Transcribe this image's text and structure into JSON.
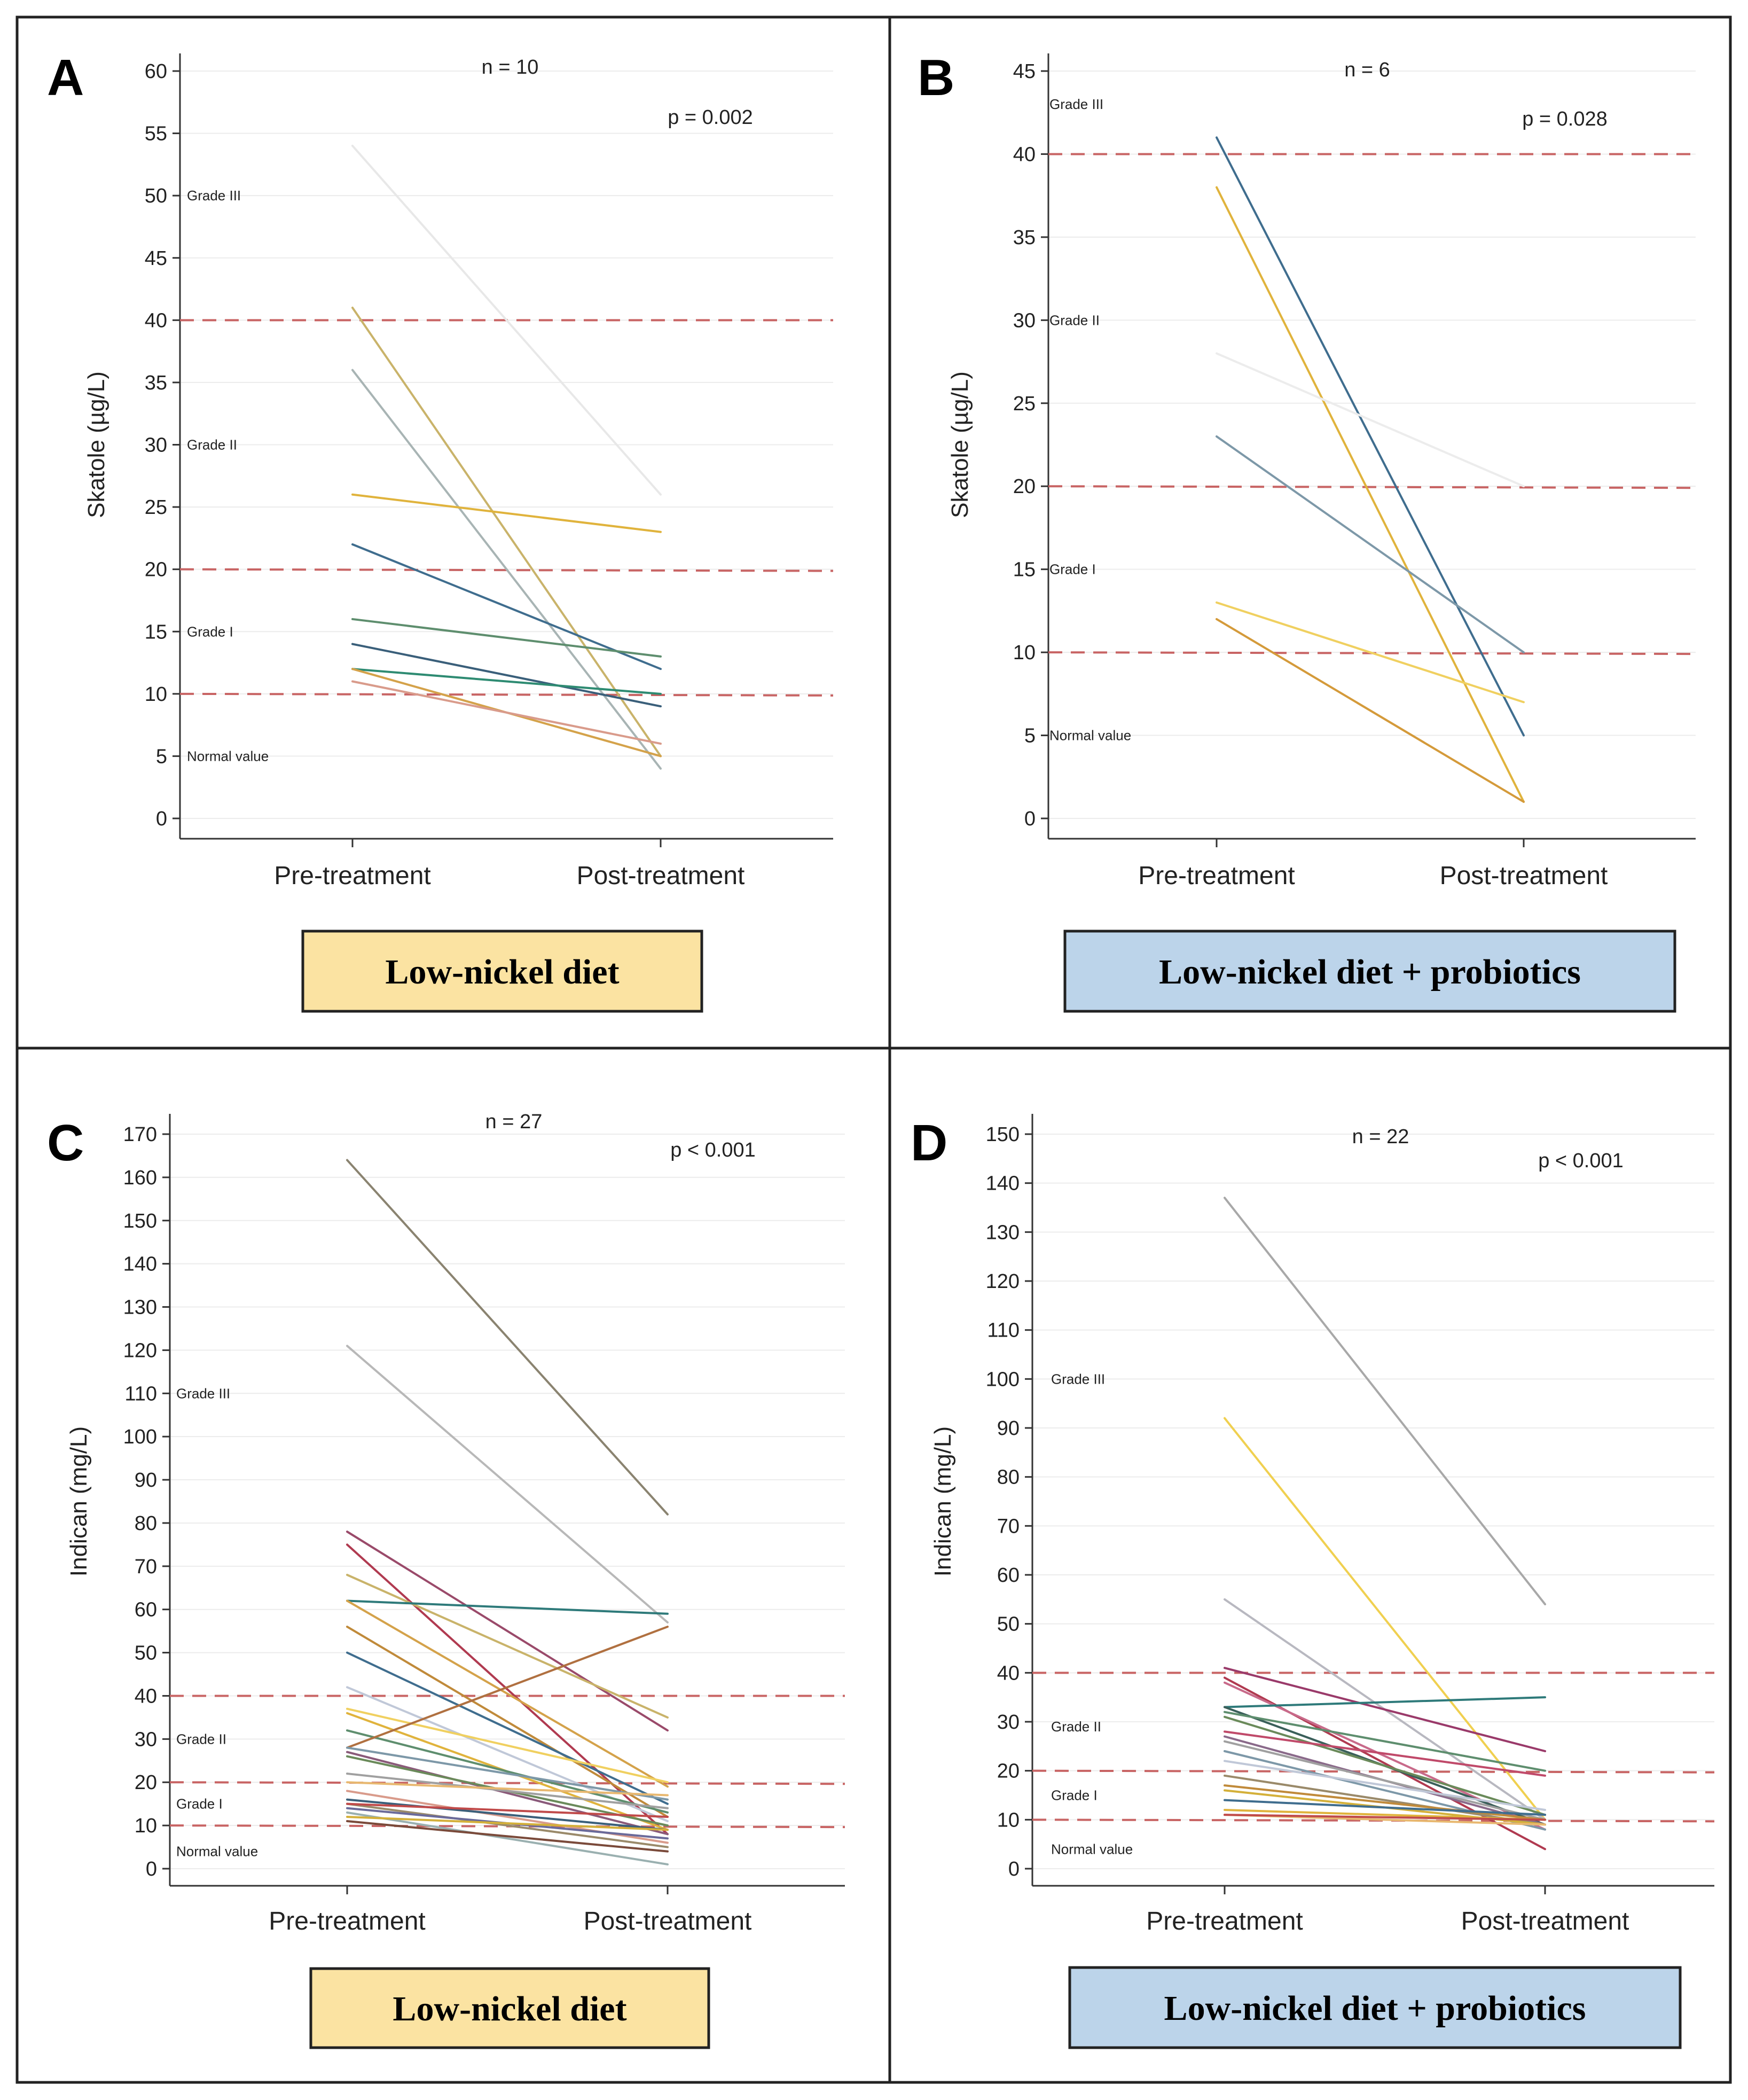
{
  "chart_data": [
    {
      "type": "line",
      "panel": "A",
      "categories": [
        "Pre-treatment",
        "Post-treatment"
      ],
      "ylabel": "Skatole (µg/L)",
      "ylim": [
        0,
        60
      ],
      "yticks": [
        0,
        5,
        10,
        15,
        20,
        25,
        30,
        35,
        40,
        45,
        50,
        55,
        60
      ],
      "n_label": "n = 10",
      "p_label": "p = 0.002",
      "thresholds": [
        10,
        20,
        40
      ],
      "grades": [
        {
          "label": "Grade III",
          "value": 50
        },
        {
          "label": "Grade II",
          "value": 30
        },
        {
          "label": "Grade I",
          "value": 15
        },
        {
          "label": "Normal value",
          "value": 5
        }
      ],
      "caption": "Low-nickel diet",
      "caption_color": "#fbe3a2",
      "series": [
        {
          "name": "s1",
          "values": [
            54,
            26
          ],
          "color": "#e8e8e8"
        },
        {
          "name": "s2",
          "values": [
            41,
            5
          ],
          "color": "#c9b36a"
        },
        {
          "name": "s3",
          "values": [
            36,
            4
          ],
          "color": "#a8b4b4"
        },
        {
          "name": "s4",
          "values": [
            26,
            23
          ],
          "color": "#e0b33c"
        },
        {
          "name": "s5",
          "values": [
            22,
            12
          ],
          "color": "#3f6d8e"
        },
        {
          "name": "s6",
          "values": [
            16,
            13
          ],
          "color": "#5e8e6e"
        },
        {
          "name": "s7",
          "values": [
            14,
            9
          ],
          "color": "#3a5f7a"
        },
        {
          "name": "s8",
          "values": [
            12,
            10
          ],
          "color": "#2e8b72"
        },
        {
          "name": "s9",
          "values": [
            12,
            5
          ],
          "color": "#d4a24a"
        },
        {
          "name": "s10",
          "values": [
            11,
            6
          ],
          "color": "#d99b8b"
        }
      ]
    },
    {
      "type": "line",
      "panel": "B",
      "categories": [
        "Pre-treatment",
        "Post-treatment"
      ],
      "ylabel": "Skatole (µg/L)",
      "ylim": [
        0,
        45
      ],
      "yticks": [
        0,
        5,
        10,
        15,
        20,
        25,
        30,
        35,
        40,
        45
      ],
      "n_label": "n = 6",
      "p_label": "p = 0.028",
      "thresholds": [
        10,
        20,
        40
      ],
      "grades": [
        {
          "label": "Grade III",
          "value": 43
        },
        {
          "label": "Grade II",
          "value": 30
        },
        {
          "label": "Grade I",
          "value": 15
        },
        {
          "label": "Normal value",
          "value": 5
        }
      ],
      "caption": "Low-nickel diet + probiotics",
      "caption_color": "#bcd4ea",
      "series": [
        {
          "name": "s1",
          "values": [
            41,
            5
          ],
          "color": "#3f6d8e"
        },
        {
          "name": "s2",
          "values": [
            38,
            1
          ],
          "color": "#e0b33c"
        },
        {
          "name": "s3",
          "values": [
            28,
            20
          ],
          "color": "#ececec"
        },
        {
          "name": "s4",
          "values": [
            23,
            10
          ],
          "color": "#7d98a8"
        },
        {
          "name": "s5",
          "values": [
            13,
            7
          ],
          "color": "#f0d060"
        },
        {
          "name": "s6",
          "values": [
            12,
            1
          ],
          "color": "#d49a3a"
        }
      ]
    },
    {
      "type": "line",
      "panel": "C",
      "categories": [
        "Pre-treatment",
        "Post-treatment"
      ],
      "ylabel": "Indican (mg/L)",
      "ylim": [
        0,
        170
      ],
      "yticks": [
        0,
        10,
        20,
        30,
        40,
        50,
        60,
        70,
        80,
        90,
        100,
        110,
        120,
        130,
        140,
        150,
        160,
        170
      ],
      "n_label": "n = 27",
      "p_label": "p < 0.001",
      "thresholds": [
        10,
        20,
        40
      ],
      "grades": [
        {
          "label": "Grade III",
          "value": 110
        },
        {
          "label": "Grade II",
          "value": 30
        },
        {
          "label": "Grade I",
          "value": 15
        },
        {
          "label": "Normal value",
          "value": 4
        }
      ],
      "caption": "Low-nickel diet",
      "caption_color": "#fbe3a2",
      "series": [
        {
          "name": "s1",
          "values": [
            164,
            82
          ],
          "color": "#8a8370"
        },
        {
          "name": "s2",
          "values": [
            121,
            57
          ],
          "color": "#b8b8b8"
        },
        {
          "name": "s3",
          "values": [
            78,
            32
          ],
          "color": "#9a4a6a"
        },
        {
          "name": "s4",
          "values": [
            75,
            8
          ],
          "color": "#b03a50"
        },
        {
          "name": "s5",
          "values": [
            68,
            35
          ],
          "color": "#c9b36a"
        },
        {
          "name": "s6",
          "values": [
            62,
            59
          ],
          "color": "#2e7a7a"
        },
        {
          "name": "s7",
          "values": [
            62,
            19
          ],
          "color": "#d4a24a"
        },
        {
          "name": "s8",
          "values": [
            56,
            12
          ],
          "color": "#c08a3a"
        },
        {
          "name": "s9",
          "values": [
            50,
            15
          ],
          "color": "#3f6d8e"
        },
        {
          "name": "s10",
          "values": [
            42,
            11
          ],
          "color": "#c0c8d8"
        },
        {
          "name": "s11",
          "values": [
            37,
            20
          ],
          "color": "#f0d060"
        },
        {
          "name": "s12",
          "values": [
            36,
            9
          ],
          "color": "#e0b33c"
        },
        {
          "name": "s13",
          "values": [
            32,
            13
          ],
          "color": "#5e8e6e"
        },
        {
          "name": "s14",
          "values": [
            28,
            56
          ],
          "color": "#b07040"
        },
        {
          "name": "s15",
          "values": [
            28,
            16
          ],
          "color": "#7d98a8"
        },
        {
          "name": "s16",
          "values": [
            27,
            8
          ],
          "color": "#8a5a7a"
        },
        {
          "name": "s17",
          "values": [
            26,
            10
          ],
          "color": "#6a8a5a"
        },
        {
          "name": "s18",
          "values": [
            22,
            14
          ],
          "color": "#a0a0a0"
        },
        {
          "name": "s19",
          "values": [
            20,
            17
          ],
          "color": "#e8b870"
        },
        {
          "name": "s20",
          "values": [
            18,
            6
          ],
          "color": "#d99b8b"
        },
        {
          "name": "s21",
          "values": [
            16,
            9
          ],
          "color": "#3a5f7a"
        },
        {
          "name": "s22",
          "values": [
            15,
            5
          ],
          "color": "#9a8a6a"
        },
        {
          "name": "s23",
          "values": [
            15,
            12
          ],
          "color": "#c04a4a"
        },
        {
          "name": "s24",
          "values": [
            14,
            7
          ],
          "color": "#6a6a9a"
        },
        {
          "name": "s25",
          "values": [
            13,
            1
          ],
          "color": "#9ab0b0"
        },
        {
          "name": "s26",
          "values": [
            12,
            9
          ],
          "color": "#d4b03a"
        },
        {
          "name": "s27",
          "values": [
            11,
            4
          ],
          "color": "#7a4a3a"
        }
      ]
    },
    {
      "type": "line",
      "panel": "D",
      "categories": [
        "Pre-treatment",
        "Post-treatment"
      ],
      "ylabel": "Indican (mg/L)",
      "ylim": [
        0,
        150
      ],
      "yticks": [
        0,
        10,
        20,
        30,
        40,
        50,
        60,
        70,
        80,
        90,
        100,
        110,
        120,
        130,
        140,
        150
      ],
      "n_label": "n = 22",
      "p_label": "p < 0.001",
      "thresholds": [
        10,
        20,
        40
      ],
      "grades": [
        {
          "label": "Grade III",
          "value": 100
        },
        {
          "label": "Grade II",
          "value": 29
        },
        {
          "label": "Grade I",
          "value": 15
        },
        {
          "label": "Normal value",
          "value": 4
        }
      ],
      "caption": "Low-nickel diet + probiotics",
      "caption_color": "#bcd4ea",
      "series": [
        {
          "name": "s1",
          "values": [
            137,
            54
          ],
          "color": "#a8a8a8"
        },
        {
          "name": "s2",
          "values": [
            92,
            10
          ],
          "color": "#f0d050"
        },
        {
          "name": "s3",
          "values": [
            55,
            10
          ],
          "color": "#b8b8c0"
        },
        {
          "name": "s4",
          "values": [
            41,
            24
          ],
          "color": "#9a3a6a"
        },
        {
          "name": "s5",
          "values": [
            39,
            4
          ],
          "color": "#b03a50"
        },
        {
          "name": "s6",
          "values": [
            38,
            8
          ],
          "color": "#c86a8a"
        },
        {
          "name": "s7",
          "values": [
            33,
            35
          ],
          "color": "#2e7a7a"
        },
        {
          "name": "s8",
          "values": [
            33,
            9
          ],
          "color": "#3a5f5a"
        },
        {
          "name": "s9",
          "values": [
            32,
            20
          ],
          "color": "#5e8e6e"
        },
        {
          "name": "s10",
          "values": [
            31,
            11
          ],
          "color": "#6a8a5a"
        },
        {
          "name": "s11",
          "values": [
            28,
            19
          ],
          "color": "#c04a6a"
        },
        {
          "name": "s12",
          "values": [
            27,
            9
          ],
          "color": "#8a6a8a"
        },
        {
          "name": "s13",
          "values": [
            26,
            10
          ],
          "color": "#a0a0a0"
        },
        {
          "name": "s14",
          "values": [
            24,
            8
          ],
          "color": "#7d98a8"
        },
        {
          "name": "s15",
          "values": [
            22,
            12
          ],
          "color": "#c0c8d8"
        },
        {
          "name": "s16",
          "values": [
            19,
            9
          ],
          "color": "#9a8a6a"
        },
        {
          "name": "s17",
          "values": [
            17,
            10
          ],
          "color": "#c08a3a"
        },
        {
          "name": "s18",
          "values": [
            16,
            9
          ],
          "color": "#d4b03a"
        },
        {
          "name": "s19",
          "values": [
            14,
            11
          ],
          "color": "#3f6d8e"
        },
        {
          "name": "s20",
          "values": [
            12,
            10
          ],
          "color": "#e0b33c"
        },
        {
          "name": "s21",
          "values": [
            11,
            9
          ],
          "color": "#e8b870"
        },
        {
          "name": "s22",
          "values": [
            11,
            10
          ],
          "color": "#c04a4a"
        }
      ]
    }
  ]
}
